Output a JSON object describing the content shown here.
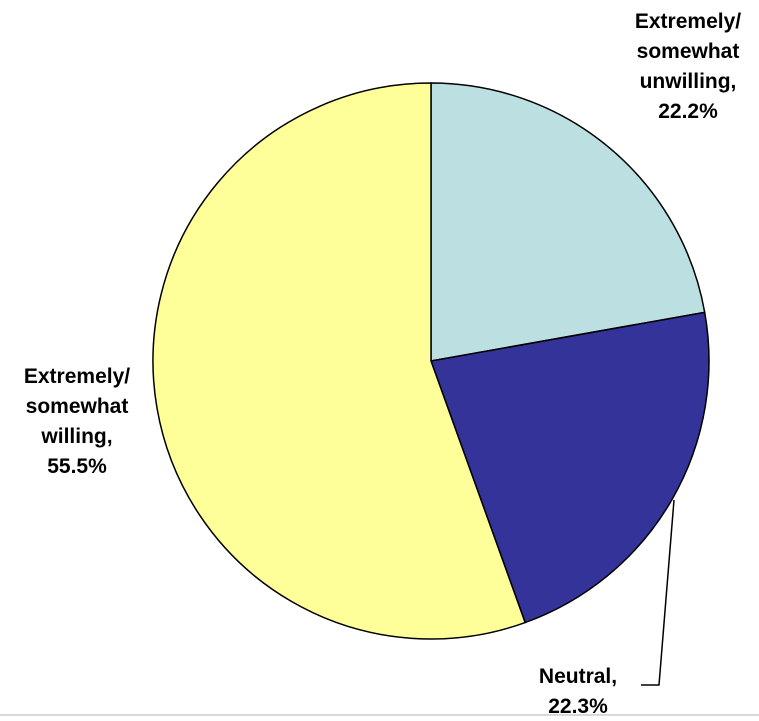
{
  "chart_data": {
    "type": "pie",
    "title": "",
    "start_angle_deg": 0,
    "direction": "clockwise",
    "legend": "none",
    "slices": [
      {
        "category": "Extremely/ somewhat unwilling",
        "value": 22.2,
        "label_lines": [
          "Extremely/",
          "somewhat",
          "unwilling,",
          "22.2%"
        ],
        "color": "#bce0e2"
      },
      {
        "category": "Neutral",
        "value": 22.3,
        "label_lines": [
          "Neutral,",
          "22.3%"
        ],
        "color": "#333399"
      },
      {
        "category": "Extremely/ somewhat willing",
        "value": 55.5,
        "label_lines": [
          "Extremely/",
          "somewhat",
          "willing,",
          "55.5%"
        ],
        "color": "#ffff99"
      }
    ]
  }
}
